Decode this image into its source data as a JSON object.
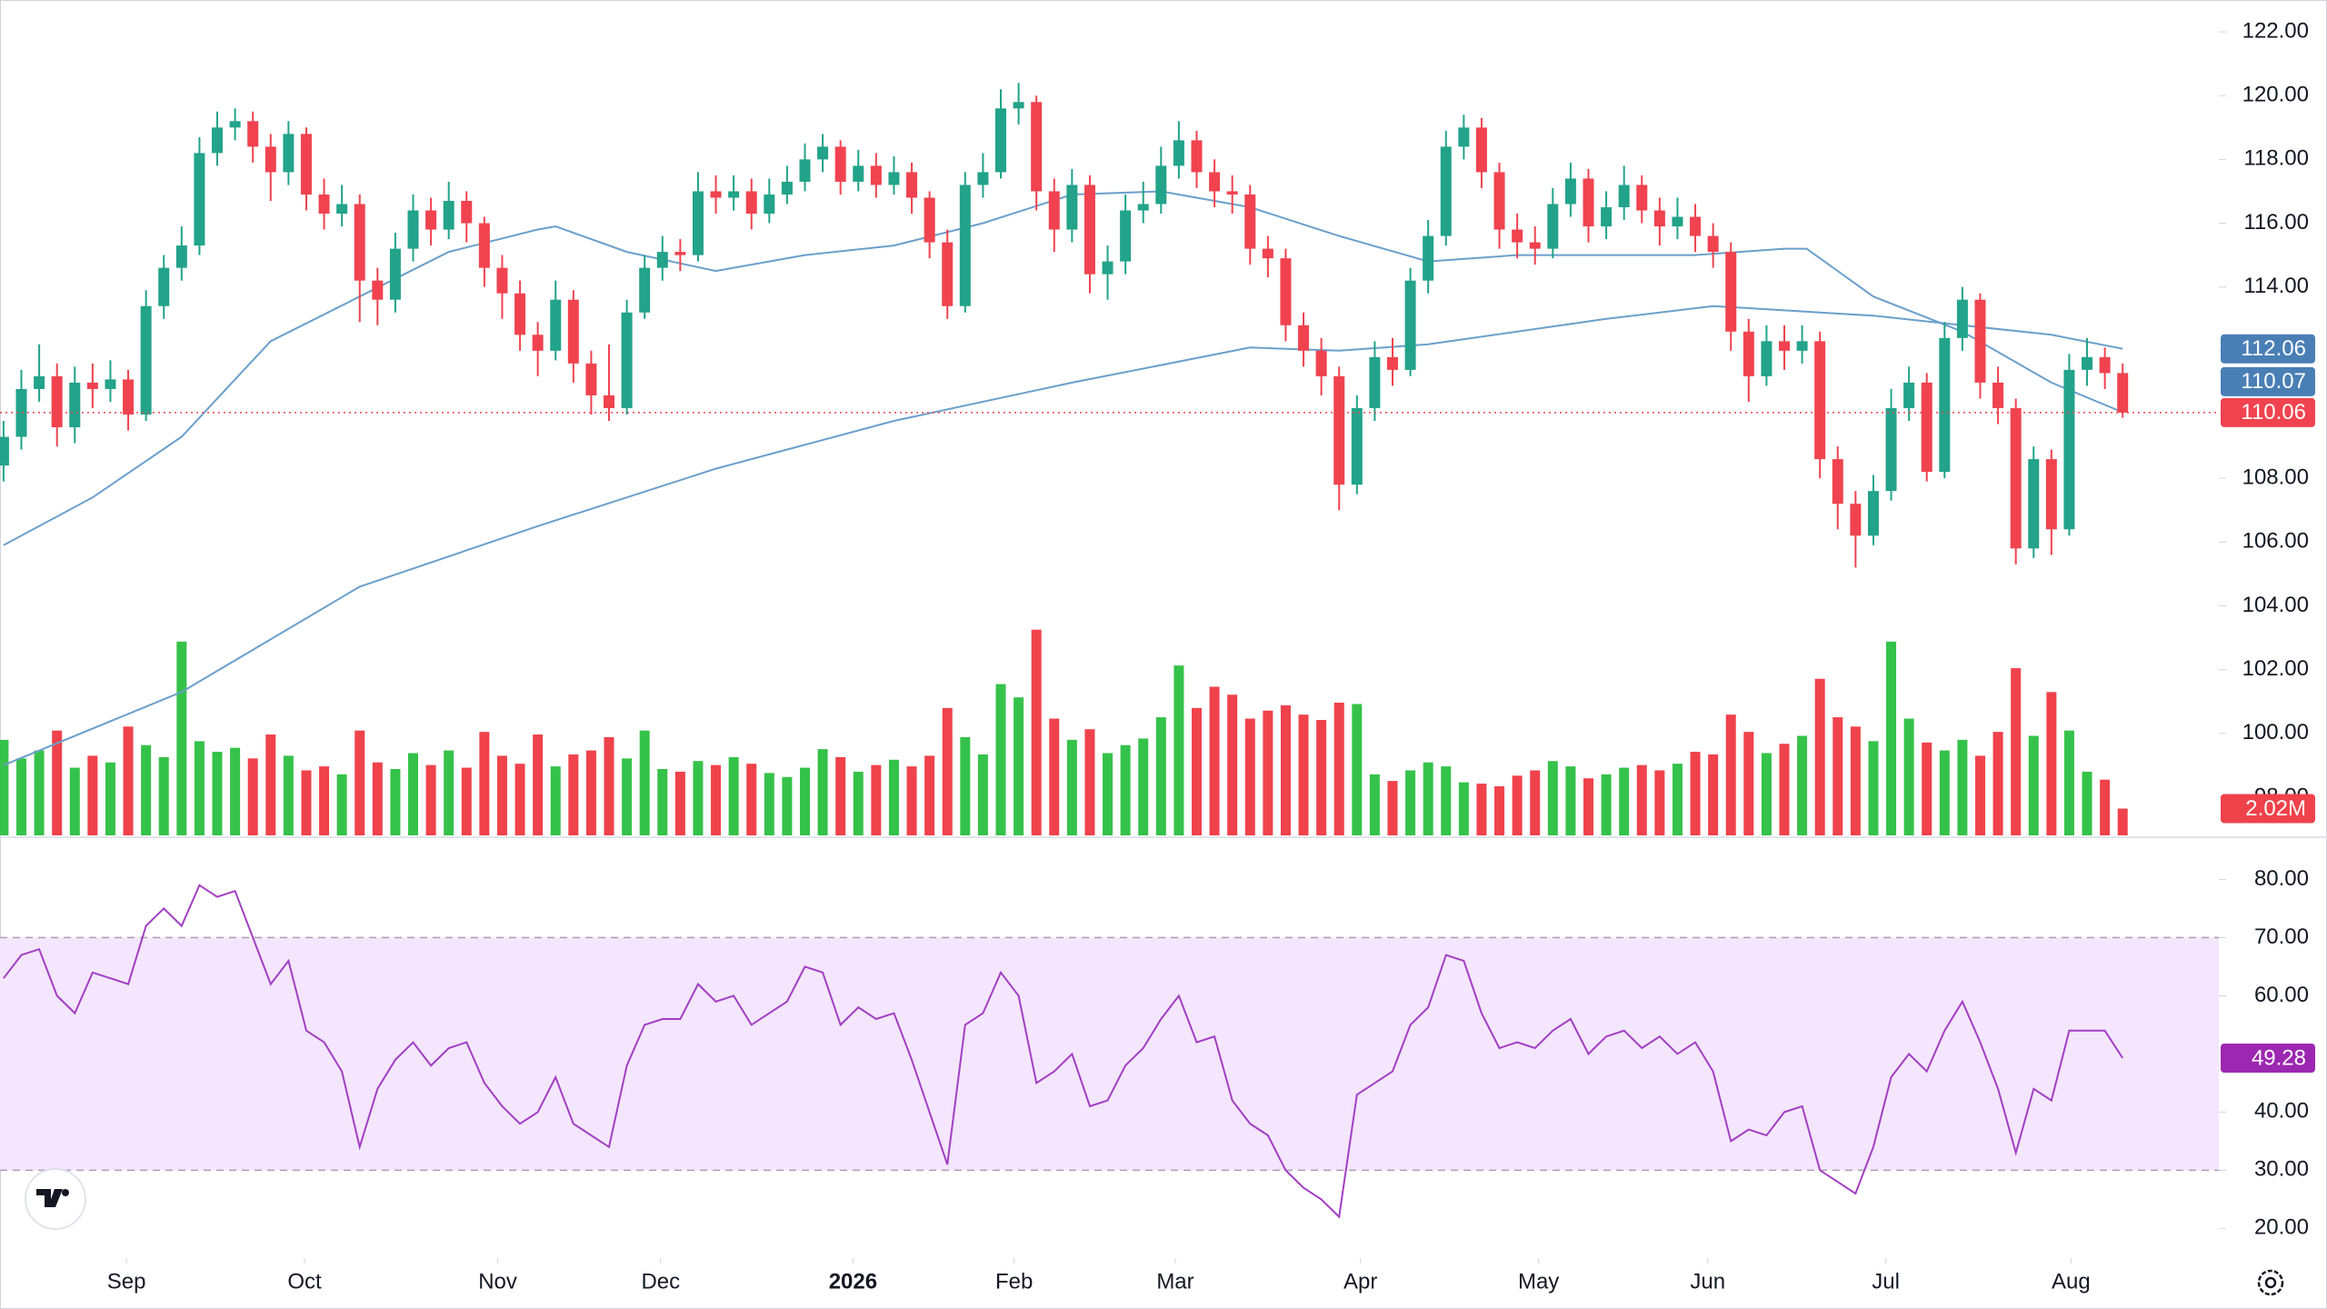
{
  "chart_data": {
    "type": "candlestick",
    "xlim": [
      -0.2,
      124.4
    ],
    "x_ticks": [
      {
        "value": 6.9,
        "label": "Sep"
      },
      {
        "value": 16.9,
        "label": "Oct"
      },
      {
        "value": 27.75,
        "label": "Nov"
      },
      {
        "value": 36.9,
        "label": "Dec"
      },
      {
        "value": 47.7,
        "label": "2026"
      },
      {
        "value": 56.75,
        "label": "Feb"
      },
      {
        "value": 65.8,
        "label": "Mar"
      },
      {
        "value": 76.2,
        "label": "Apr"
      },
      {
        "value": 86.2,
        "label": "May"
      },
      {
        "value": 95.7,
        "label": "Jun"
      },
      {
        "value": 105.7,
        "label": "Jul"
      },
      {
        "value": 116.1,
        "label": "Aug"
      }
    ],
    "ylim": [
      96.8,
      123.0
    ],
    "yticks": [
      {
        "value": 98,
        "label": "98.00"
      },
      {
        "value": 100,
        "label": "100.00"
      },
      {
        "value": 102,
        "label": "102.00"
      },
      {
        "value": 104,
        "label": "104.00"
      },
      {
        "value": 106,
        "label": "106.00"
      },
      {
        "value": 108,
        "label": "108.00"
      },
      {
        "value": 110,
        "label": "110.00"
      },
      {
        "value": 112,
        "label": "112.00"
      },
      {
        "value": 114,
        "label": "114.00"
      },
      {
        "value": 116,
        "label": "116.00"
      },
      {
        "value": 118,
        "label": "118.00"
      },
      {
        "value": 120,
        "label": "120.00"
      },
      {
        "value": 122,
        "label": "122.00"
      }
    ],
    "up_color": "#22a38a",
    "down_color": "#f0434f",
    "open": [
      108.4,
      109.3,
      110.8,
      111.2,
      109.6,
      111.0,
      110.8,
      111.1,
      110.0,
      113.4,
      114.6,
      115.3,
      118.2,
      119.0,
      119.2,
      118.4,
      117.6,
      118.8,
      116.9,
      116.3,
      116.6,
      114.2,
      113.6,
      115.2,
      116.4,
      115.8,
      116.7,
      116.0,
      114.6,
      113.8,
      112.5,
      112.0,
      113.6,
      111.6,
      110.6,
      110.2,
      113.2,
      114.6,
      115.1,
      115.0,
      117.0,
      116.8,
      117.0,
      116.3,
      116.9,
      117.3,
      118.0,
      118.4,
      117.3,
      117.8,
      117.2,
      117.6,
      116.8,
      115.4,
      113.4,
      117.2,
      117.6,
      119.6,
      119.8,
      117.0,
      115.8,
      117.2,
      114.4,
      114.8,
      116.4,
      116.6,
      117.8,
      118.6,
      117.6,
      117.0,
      116.9,
      115.2,
      114.9,
      112.8,
      112.0,
      111.2,
      107.8,
      110.2,
      111.8,
      111.4,
      114.2,
      115.6,
      118.4,
      119.0,
      117.6,
      115.8,
      115.4,
      115.2,
      116.6,
      117.4,
      115.9,
      116.5,
      117.2,
      116.4,
      115.9,
      116.2,
      115.6,
      115.1,
      112.6,
      111.2,
      112.3,
      112.0,
      112.3,
      108.6,
      107.2,
      106.2,
      107.6,
      110.2,
      111.0,
      108.2,
      112.4,
      113.6,
      111.0,
      110.2,
      105.8,
      108.6,
      106.4,
      111.4,
      111.8,
      111.3
    ],
    "high": [
      109.8,
      111.4,
      112.2,
      111.6,
      111.5,
      111.6,
      111.7,
      111.4,
      113.9,
      115.0,
      115.9,
      118.7,
      119.5,
      119.6,
      119.5,
      118.8,
      119.2,
      119.0,
      117.4,
      117.2,
      116.9,
      114.6,
      115.7,
      116.9,
      116.8,
      117.3,
      117.0,
      116.2,
      115.0,
      114.2,
      112.9,
      114.2,
      113.9,
      112.0,
      112.2,
      113.6,
      115.0,
      115.6,
      115.5,
      117.6,
      117.5,
      117.5,
      117.4,
      117.4,
      117.8,
      118.5,
      118.8,
      118.6,
      118.3,
      118.2,
      118.1,
      117.9,
      117.0,
      115.8,
      117.6,
      118.2,
      120.2,
      120.4,
      120.0,
      117.4,
      117.7,
      117.5,
      115.3,
      116.9,
      117.3,
      118.4,
      119.2,
      118.9,
      118.0,
      117.5,
      117.2,
      115.6,
      115.2,
      113.2,
      112.4,
      111.5,
      110.6,
      112.3,
      112.4,
      114.6,
      116.1,
      118.9,
      119.4,
      119.3,
      117.9,
      116.3,
      115.9,
      117.1,
      117.9,
      117.7,
      117.0,
      117.8,
      117.5,
      116.8,
      116.8,
      116.6,
      116.0,
      115.4,
      113.0,
      112.8,
      112.8,
      112.8,
      112.6,
      109.0,
      107.6,
      108.1,
      110.8,
      111.5,
      111.3,
      112.9,
      114.0,
      113.8,
      111.5,
      110.5,
      109.0,
      108.9,
      111.9,
      112.4,
      112.1,
      111.6
    ],
    "low": [
      107.9,
      108.9,
      110.4,
      109.0,
      109.1,
      110.2,
      110.4,
      109.5,
      109.8,
      113.0,
      114.2,
      115.0,
      117.8,
      118.6,
      117.9,
      116.7,
      117.2,
      116.4,
      115.8,
      115.9,
      112.9,
      112.8,
      113.2,
      114.8,
      115.3,
      115.5,
      115.4,
      114.0,
      113.0,
      112.0,
      111.2,
      111.7,
      111.0,
      110.0,
      109.8,
      110.0,
      113.0,
      114.2,
      114.5,
      114.8,
      116.3,
      116.4,
      115.8,
      116.0,
      116.6,
      117.0,
      117.6,
      116.9,
      117.0,
      116.8,
      116.9,
      116.3,
      114.9,
      113.0,
      113.2,
      116.8,
      117.4,
      119.1,
      116.4,
      115.1,
      115.4,
      113.8,
      113.6,
      114.4,
      116.0,
      116.3,
      117.4,
      117.1,
      116.5,
      116.3,
      114.7,
      114.3,
      112.3,
      111.5,
      110.6,
      107.0,
      107.5,
      109.8,
      110.9,
      111.2,
      113.8,
      115.3,
      118.0,
      117.1,
      115.2,
      114.9,
      114.7,
      114.9,
      116.2,
      115.4,
      115.5,
      116.1,
      116.0,
      115.3,
      115.5,
      115.1,
      114.6,
      112.0,
      110.4,
      110.9,
      111.4,
      111.6,
      108.0,
      106.4,
      105.2,
      105.9,
      107.3,
      109.8,
      107.9,
      108.0,
      112.0,
      110.5,
      109.7,
      105.3,
      105.5,
      105.6,
      106.2,
      110.9,
      110.8,
      109.9
    ],
    "close": [
      109.3,
      110.8,
      111.2,
      109.6,
      111.0,
      110.8,
      111.1,
      110.0,
      113.4,
      114.6,
      115.3,
      118.2,
      119.0,
      119.2,
      118.4,
      117.6,
      118.8,
      116.9,
      116.3,
      116.6,
      114.2,
      113.6,
      115.2,
      116.4,
      115.8,
      116.7,
      116.0,
      114.6,
      113.8,
      112.5,
      112.0,
      113.6,
      111.6,
      110.6,
      110.2,
      113.2,
      114.6,
      115.1,
      115.0,
      117.0,
      116.8,
      117.0,
      116.3,
      116.9,
      117.3,
      118.0,
      118.4,
      117.3,
      117.8,
      117.2,
      117.6,
      116.8,
      115.4,
      113.4,
      117.2,
      117.6,
      119.6,
      119.8,
      117.0,
      115.8,
      117.2,
      114.4,
      114.8,
      116.4,
      116.6,
      117.8,
      118.6,
      117.6,
      117.0,
      116.9,
      115.2,
      114.9,
      112.8,
      112.0,
      111.2,
      107.8,
      110.2,
      111.8,
      111.4,
      114.2,
      115.6,
      118.4,
      119.0,
      117.6,
      115.8,
      115.4,
      115.2,
      116.6,
      117.4,
      115.9,
      116.5,
      117.2,
      116.4,
      115.9,
      116.2,
      115.6,
      115.1,
      112.6,
      111.2,
      112.3,
      112.0,
      112.3,
      108.6,
      107.2,
      106.2,
      107.6,
      110.2,
      111.0,
      108.2,
      112.4,
      113.6,
      111.0,
      110.2,
      105.8,
      108.6,
      106.4,
      111.4,
      111.8,
      111.3,
      110.06
    ],
    "volume": {
      "ylim": [
        0,
        30
      ],
      "up_color": "#35c24a",
      "down_color": "#f0424b",
      "last_label": "2.02M",
      "values": [
        7.2,
        5.8,
        6.4,
        7.9,
        5.1,
        6.0,
        5.5,
        8.2,
        6.8,
        5.9,
        14.6,
        7.1,
        6.3,
        6.6,
        5.8,
        7.6,
        6.0,
        4.9,
        5.2,
        4.6,
        7.9,
        5.5,
        5.0,
        6.2,
        5.3,
        6.4,
        5.1,
        7.8,
        6.0,
        5.4,
        7.6,
        5.2,
        6.1,
        6.4,
        7.4,
        5.8,
        7.9,
        5.0,
        4.8,
        5.6,
        5.3,
        5.9,
        5.4,
        4.7,
        4.4,
        5.1,
        6.5,
        5.9,
        4.8,
        5.3,
        5.7,
        5.2,
        6.0,
        9.6,
        7.4,
        6.1,
        11.4,
        10.4,
        15.5,
        8.8,
        7.2,
        8.0,
        6.2,
        6.8,
        7.3,
        8.9,
        12.8,
        9.6,
        11.2,
        10.6,
        8.8,
        9.4,
        9.8,
        9.1,
        8.7,
        10.0,
        9.9,
        4.6,
        4.1,
        4.9,
        5.5,
        5.2,
        4.0,
        3.9,
        3.7,
        4.5,
        4.9,
        5.6,
        5.2,
        4.3,
        4.6,
        5.1,
        5.3,
        4.9,
        5.4,
        6.3,
        6.1,
        9.1,
        7.8,
        6.2,
        6.9,
        7.5,
        11.8,
        8.9,
        8.2,
        7.1,
        14.6,
        8.8,
        7.0,
        6.4,
        7.2,
        6.0,
        7.8,
        12.6,
        7.5,
        10.8,
        7.9,
        4.8,
        4.2,
        2.02
      ]
    },
    "lines": [
      {
        "color": "#6a9fcb",
        "x": [
          0,
          5,
          10,
          15,
          20,
          25,
          30,
          31,
          35,
          40,
          45,
          50,
          55,
          60,
          65,
          70,
          75,
          80,
          85,
          90,
          95,
          100,
          101.25,
          105,
          110,
          115,
          119
        ],
        "values": [
          105.9,
          107.4,
          109.3,
          112.3,
          113.7,
          115.1,
          115.8,
          115.9,
          115.1,
          114.5,
          115.0,
          115.3,
          116.0,
          116.9,
          117.0,
          116.5,
          115.6,
          114.8,
          115.0,
          115.0,
          115.0,
          115.2,
          115.2,
          113.7,
          112.6,
          111.0,
          110.07
        ]
      },
      {
        "color": "#6a9fcb",
        "x": [
          0,
          10,
          20,
          30,
          40,
          50,
          60,
          70,
          75,
          80,
          90,
          96,
          105,
          115,
          119
        ],
        "values": [
          99.0,
          101.3,
          104.6,
          106.5,
          108.3,
          109.8,
          111.0,
          112.1,
          112.0,
          112.2,
          113.0,
          113.4,
          113.1,
          112.5,
          112.06
        ]
      }
    ],
    "ma_label_color": "#4a7fb5",
    "rsi": {
      "color": "#a23ec2",
      "band": [
        30,
        70
      ],
      "band_color": "#f3e6fd",
      "label_color": "#9c27b0",
      "ylim": [
        14.9,
        87.1
      ],
      "yticks": [
        {
          "value": 20,
          "label": "20.00"
        },
        {
          "value": 30,
          "label": "30.00"
        },
        {
          "value": 40,
          "label": "40.00"
        },
        {
          "value": 50,
          "label": "50.00"
        },
        {
          "value": 60,
          "label": "60.00"
        },
        {
          "value": 70,
          "label": "70.00"
        },
        {
          "value": 80,
          "label": "80.00"
        }
      ],
      "values": [
        63,
        67,
        68,
        60,
        57,
        64,
        63,
        62,
        72,
        75,
        72,
        79,
        77,
        78,
        70,
        62,
        66,
        54,
        52,
        47,
        34,
        44,
        49,
        52,
        48,
        51,
        52,
        45,
        41,
        38,
        40,
        46,
        38,
        36,
        34,
        48,
        55,
        56,
        56,
        62,
        59,
        60,
        55,
        57,
        59,
        65,
        64,
        55,
        58,
        56,
        57,
        49,
        40,
        31,
        55,
        57,
        64,
        60,
        45,
        47,
        50,
        41,
        42,
        48,
        51,
        56,
        60,
        52,
        53,
        42,
        38,
        36,
        30,
        27,
        25,
        22,
        43,
        45,
        47,
        55,
        58,
        67,
        66,
        57,
        51,
        52,
        51,
        54,
        56,
        50,
        53,
        54,
        51,
        53,
        50,
        52,
        47,
        35,
        37,
        36,
        40,
        41,
        30,
        28,
        26,
        34,
        46,
        50,
        47,
        54,
        59,
        52,
        44,
        33,
        44,
        42,
        54,
        54,
        54,
        49.28
      ]
    }
  }
}
